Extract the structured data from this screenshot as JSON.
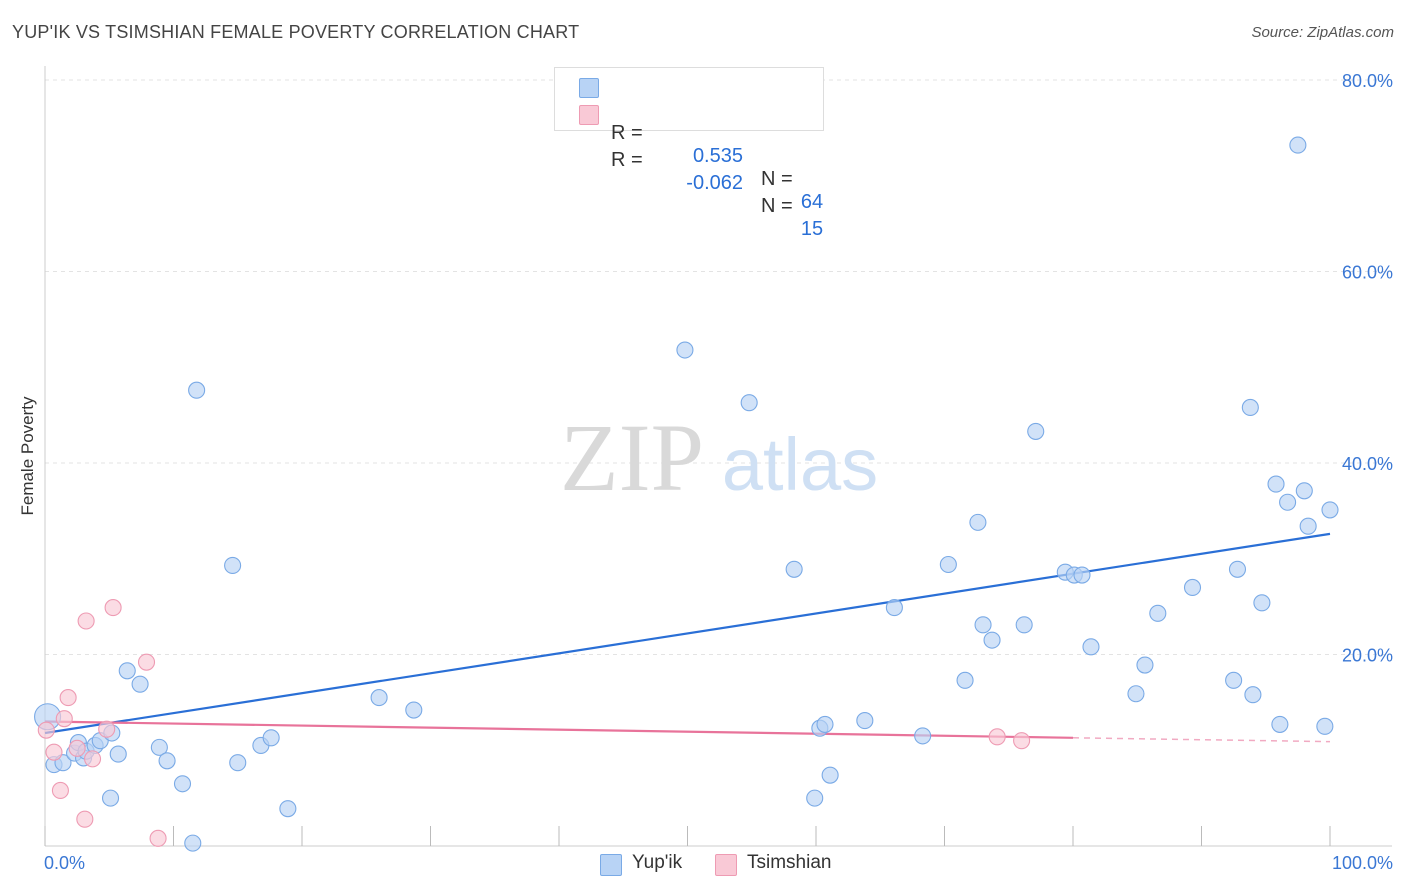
{
  "title": "YUP'IK VS TSIMSHIAN FEMALE POVERTY CORRELATION CHART",
  "source": "Source: ZipAtlas.com",
  "watermark": {
    "zip": "ZIP",
    "atlas": "atlas"
  },
  "legend": {
    "rows": [
      {
        "r_label": "R =",
        "r_value": "0.535",
        "n_label": "N =",
        "n_value": "64",
        "color": "#b8d3f5",
        "border": "#7aaae6"
      },
      {
        "r_label": "R =",
        "r_value": "-0.062",
        "n_label": "N =",
        "n_value": "15",
        "color": "#f9c9d6",
        "border": "#ee9bb3"
      }
    ]
  },
  "bottom_legend": [
    {
      "label": "Yup'ik",
      "color": "#b8d3f5",
      "border": "#7aaae6"
    },
    {
      "label": "Tsimshian",
      "color": "#f9c9d6",
      "border": "#ee9bb3"
    }
  ],
  "chart_data": {
    "type": "scatter",
    "ylabel": "Female Poverty",
    "xlim": [
      0,
      100
    ],
    "ylim": [
      0,
      80
    ],
    "x_tick_labels": [
      "0.0%",
      "100.0%"
    ],
    "y_ticks": [
      20,
      40,
      60,
      80
    ],
    "y_tick_labels": [
      "20.0%",
      "40.0%",
      "60.0%",
      "80.0%"
    ],
    "grid": true,
    "series": [
      {
        "name": "Yup'ik",
        "color": "#7aaae6",
        "fill": "#b8d3f5",
        "trend": {
          "x": [
            0,
            100
          ],
          "y": [
            11.8,
            32.6
          ],
          "color": "#2a6fd6"
        },
        "points": [
          [
            0.2,
            13.5
          ],
          [
            0.7,
            8.5
          ],
          [
            1.4,
            8.7
          ],
          [
            2.3,
            9.7
          ],
          [
            2.6,
            10.8
          ],
          [
            3.0,
            9.2
          ],
          [
            3.2,
            9.9
          ],
          [
            3.9,
            10.5
          ],
          [
            4.3,
            11.0
          ],
          [
            5.1,
            5.0
          ],
          [
            5.2,
            11.8
          ],
          [
            5.7,
            9.6
          ],
          [
            6.4,
            18.3
          ],
          [
            7.4,
            16.9
          ],
          [
            8.9,
            10.3
          ],
          [
            9.5,
            8.9
          ],
          [
            10.7,
            6.5
          ],
          [
            11.5,
            0.3
          ],
          [
            11.8,
            47.6
          ],
          [
            14.6,
            29.3
          ],
          [
            15.0,
            8.7
          ],
          [
            16.8,
            10.5
          ],
          [
            17.6,
            11.3
          ],
          [
            18.9,
            3.9
          ],
          [
            26.0,
            15.5
          ],
          [
            28.7,
            14.2
          ],
          [
            49.8,
            51.8
          ],
          [
            54.8,
            46.3
          ],
          [
            58.3,
            28.9
          ],
          [
            59.9,
            5.0
          ],
          [
            60.3,
            12.3
          ],
          [
            60.7,
            12.7
          ],
          [
            61.1,
            7.4
          ],
          [
            63.8,
            13.1
          ],
          [
            66.1,
            24.9
          ],
          [
            68.3,
            11.5
          ],
          [
            70.3,
            29.4
          ],
          [
            71.6,
            17.3
          ],
          [
            72.6,
            33.8
          ],
          [
            73.0,
            23.1
          ],
          [
            73.7,
            21.5
          ],
          [
            76.2,
            23.1
          ],
          [
            77.1,
            43.3
          ],
          [
            79.4,
            28.6
          ],
          [
            80.1,
            28.3
          ],
          [
            80.7,
            28.3
          ],
          [
            81.4,
            20.8
          ],
          [
            84.9,
            15.9
          ],
          [
            85.6,
            18.9
          ],
          [
            86.6,
            24.3
          ],
          [
            89.3,
            27.0
          ],
          [
            92.5,
            17.3
          ],
          [
            92.8,
            28.9
          ],
          [
            93.8,
            45.8
          ],
          [
            94.0,
            15.8
          ],
          [
            94.7,
            25.4
          ],
          [
            95.8,
            37.8
          ],
          [
            96.1,
            12.7
          ],
          [
            96.7,
            35.9
          ],
          [
            97.5,
            73.2
          ],
          [
            98.0,
            37.1
          ],
          [
            98.3,
            33.4
          ],
          [
            99.6,
            12.5
          ],
          [
            100.0,
            35.1
          ]
        ]
      },
      {
        "name": "Tsimshian",
        "color": "#ee9bb3",
        "fill": "#f9c9d6",
        "trend": {
          "x": [
            0,
            80
          ],
          "y": [
            13.0,
            11.3
          ],
          "dash_to": [
            100,
            10.9
          ],
          "color": "#e8739a"
        },
        "points": [
          [
            0.1,
            12.1
          ],
          [
            0.7,
            9.8
          ],
          [
            1.2,
            5.8
          ],
          [
            1.5,
            13.3
          ],
          [
            1.8,
            15.5
          ],
          [
            2.5,
            10.2
          ],
          [
            3.1,
            2.8
          ],
          [
            3.2,
            23.5
          ],
          [
            3.7,
            9.1
          ],
          [
            4.8,
            12.2
          ],
          [
            5.3,
            24.9
          ],
          [
            7.9,
            19.2
          ],
          [
            8.8,
            0.8
          ],
          [
            74.1,
            11.4
          ],
          [
            76.0,
            11.0
          ]
        ]
      }
    ]
  }
}
